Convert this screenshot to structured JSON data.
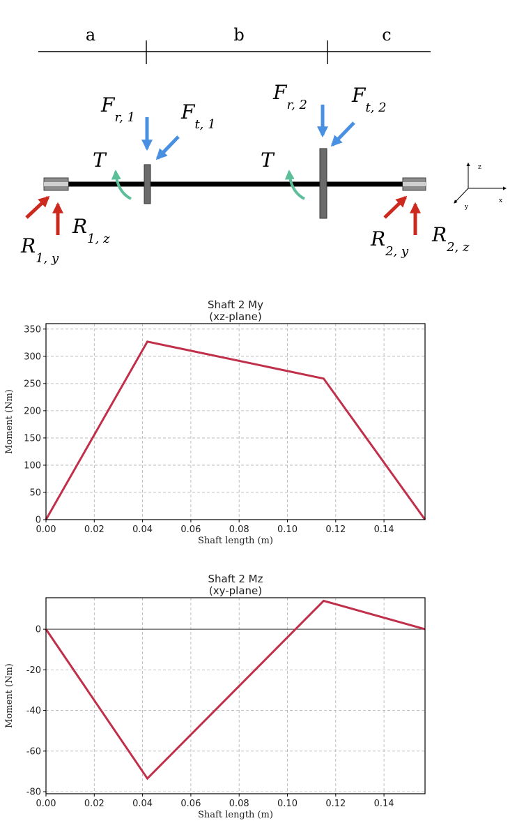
{
  "diagram": {
    "segments": [
      "a",
      "b",
      "c"
    ],
    "forces": {
      "fr1": {
        "main": "F",
        "sub": "r, 1"
      },
      "ft1": {
        "main": "F",
        "sub": "t, 1"
      },
      "fr2": {
        "main": "F",
        "sub": "r, 2"
      },
      "ft2": {
        "main": "F",
        "sub": "t, 2"
      },
      "torque_1": "T",
      "torque_2": "T",
      "r1y": {
        "main": "R",
        "sub": "1, y"
      },
      "r1z": {
        "main": "R",
        "sub": "1, z"
      },
      "r2y": {
        "main": "R",
        "sub": "2, y"
      },
      "r2z": {
        "main": "R",
        "sub": "2, z"
      }
    },
    "axes": {
      "x": "x",
      "y": "y",
      "z": "z"
    },
    "colors": {
      "applied_force": "#4a90e2",
      "reaction_force": "#cc2a1f",
      "torque": "#5dbf9a",
      "shaft": "#000000",
      "gear": "#6b6b6b"
    }
  },
  "chart_data": [
    {
      "type": "line",
      "title": "Shaft 2 My",
      "subtitle": "(xz-plane)",
      "xlabel": "Shaft length (m)",
      "ylabel": "Moment (Nm)",
      "xlim": [
        0,
        0.157
      ],
      "ylim": [
        0,
        360
      ],
      "xticks": [
        "0.00",
        "0.02",
        "0.04",
        "0.06",
        "0.08",
        "0.10",
        "0.12",
        "0.14"
      ],
      "yticks": [
        "0",
        "50",
        "100",
        "150",
        "200",
        "250",
        "300",
        "350"
      ],
      "grid": true,
      "color": "#c0304a",
      "x": [
        0,
        0.042,
        0.115,
        0.157
      ],
      "y": [
        0,
        327,
        259,
        0
      ]
    },
    {
      "type": "line",
      "title": "Shaft 2 Mz",
      "subtitle": "(xy-plane)",
      "xlabel": "Shaft length (m)",
      "ylabel": "Moment (Nm)",
      "xlim": [
        0,
        0.157
      ],
      "ylim": [
        -81,
        15.5
      ],
      "xticks": [
        "0.00",
        "0.02",
        "0.04",
        "0.06",
        "0.08",
        "0.10",
        "0.12",
        "0.14"
      ],
      "yticks": [
        "-80",
        "-60",
        "-40",
        "-20",
        "0"
      ],
      "grid": true,
      "zero_line": true,
      "color": "#c0304a",
      "x": [
        0,
        0.042,
        0.115,
        0.157
      ],
      "y": [
        0,
        -73.5,
        14,
        0
      ]
    }
  ]
}
